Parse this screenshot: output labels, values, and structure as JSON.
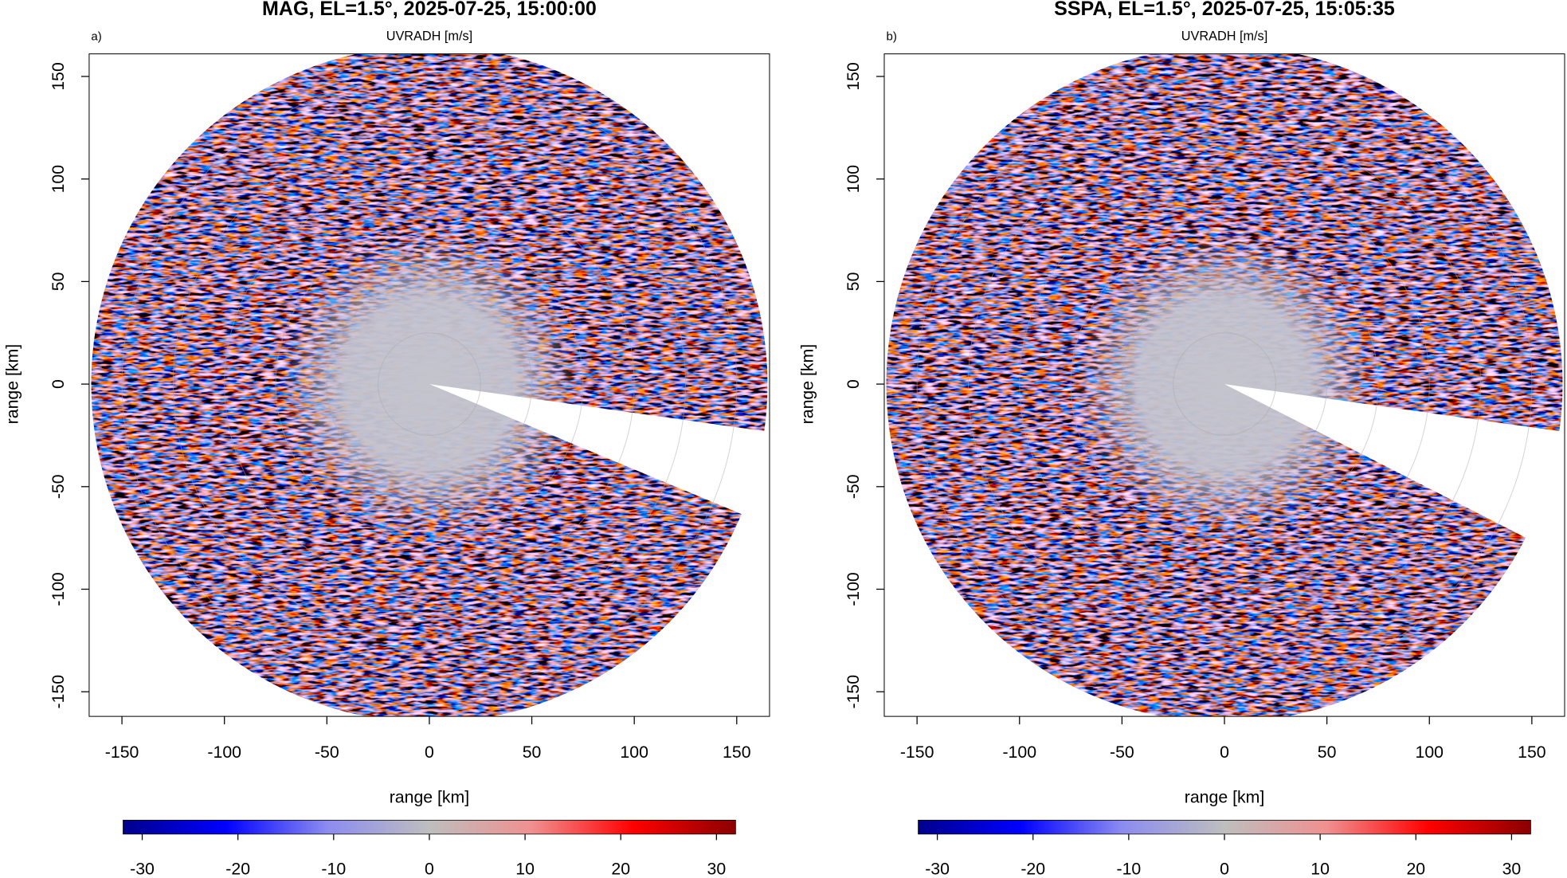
{
  "chart_data": [
    {
      "type": "ppi",
      "title": "MAG, EL=1.5°, 2025-07-25, 15:00:00",
      "panel_label": "a)",
      "subtitle": "UVRADH [m/s]",
      "xlabel": "range [km]",
      "ylabel": "range [km]",
      "xlim": [
        -166,
        166
      ],
      "ylim": [
        -162,
        161
      ],
      "xticks": [
        -150,
        -100,
        -50,
        0,
        50,
        100,
        150
      ],
      "yticks": [
        -150,
        -100,
        -50,
        0,
        50,
        100,
        150
      ],
      "colorbar": {
        "lim": [
          -32,
          32
        ],
        "ticks": [
          -30,
          -20,
          -10,
          0,
          10,
          20,
          30
        ],
        "colors": [
          "#00008b",
          "#0000ff",
          "#8c8cf0",
          "#bebebe",
          "#f09090",
          "#ff0000",
          "#8b0000"
        ]
      }
    },
    {
      "type": "ppi",
      "title": "SSPA, EL=1.5°, 2025-07-25, 15:05:35",
      "panel_label": "b)",
      "subtitle": "UVRADH [m/s]",
      "xlabel": "range [km]",
      "ylabel": "range [km]",
      "xlim": [
        -166,
        166
      ],
      "ylim": [
        -162,
        161
      ],
      "xticks": [
        -150,
        -100,
        -50,
        0,
        50,
        100,
        150
      ],
      "yticks": [
        -150,
        -100,
        -50,
        0,
        50,
        100,
        150
      ],
      "colorbar": {
        "lim": [
          -32,
          32
        ],
        "ticks": [
          -30,
          -20,
          -10,
          0,
          10,
          20,
          30
        ],
        "colors": [
          "#00008b",
          "#0000ff",
          "#8c8cf0",
          "#bebebe",
          "#f09090",
          "#ff0000",
          "#8b0000"
        ]
      }
    }
  ]
}
